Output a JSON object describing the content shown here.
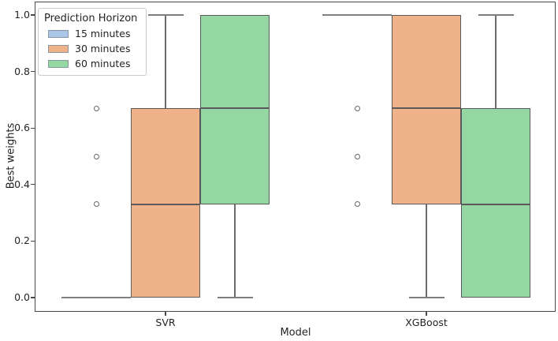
{
  "figure": {
    "legend": {
      "title": "Prediction Horizon",
      "position": "upper left",
      "entries": [
        {
          "label": "15 minutes",
          "color": "#a9c6e7"
        },
        {
          "label": "30 minutes",
          "color": "#f0b289"
        },
        {
          "label": "60 minutes",
          "color": "#94d7a2"
        }
      ]
    }
  },
  "chart_data": {
    "type": "grouped_boxplot",
    "title": "",
    "xlabel": "Model",
    "ylabel": "Best weights",
    "categories": [
      "SVR",
      "XGBoost"
    ],
    "hues": [
      "15 minutes",
      "30 minutes",
      "60 minutes"
    ],
    "hue_colors": [
      "#a9c6e7",
      "#f0b289",
      "#94d7a2"
    ],
    "edge_color": "#5a5a5a",
    "collapsed_line_color": "#808080",
    "ylim": [
      -0.05,
      1.05
    ],
    "y_ticks": [
      0.0,
      0.2,
      0.4,
      0.6,
      0.8,
      1.0
    ],
    "grid": false,
    "legend_position": "upper left",
    "boxes": [
      {
        "category": "SVR",
        "hue": "15 minutes",
        "collapsed_at": 0.0,
        "outliers": [
          0.33,
          0.5,
          0.67
        ]
      },
      {
        "category": "SVR",
        "hue": "30 minutes",
        "whislo": 0.0,
        "q1": 0.0,
        "med": 0.33,
        "q3": 0.67,
        "whishi": 1.0,
        "outliers": []
      },
      {
        "category": "SVR",
        "hue": "60 minutes",
        "whislo": 0.0,
        "q1": 0.33,
        "med": 0.67,
        "q3": 1.0,
        "whishi": 1.0,
        "outliers": []
      },
      {
        "category": "XGBoost",
        "hue": "15 minutes",
        "collapsed_at": 1.0,
        "outliers": [
          0.33,
          0.5,
          0.67
        ]
      },
      {
        "category": "XGBoost",
        "hue": "30 minutes",
        "whislo": 0.0,
        "q1": 0.33,
        "med": 0.67,
        "q3": 1.0,
        "whishi": 1.0,
        "outliers": []
      },
      {
        "category": "XGBoost",
        "hue": "60 minutes",
        "whislo": 0.0,
        "q1": 0.0,
        "med": 0.33,
        "q3": 0.67,
        "whishi": 1.0,
        "outliers": []
      }
    ]
  }
}
